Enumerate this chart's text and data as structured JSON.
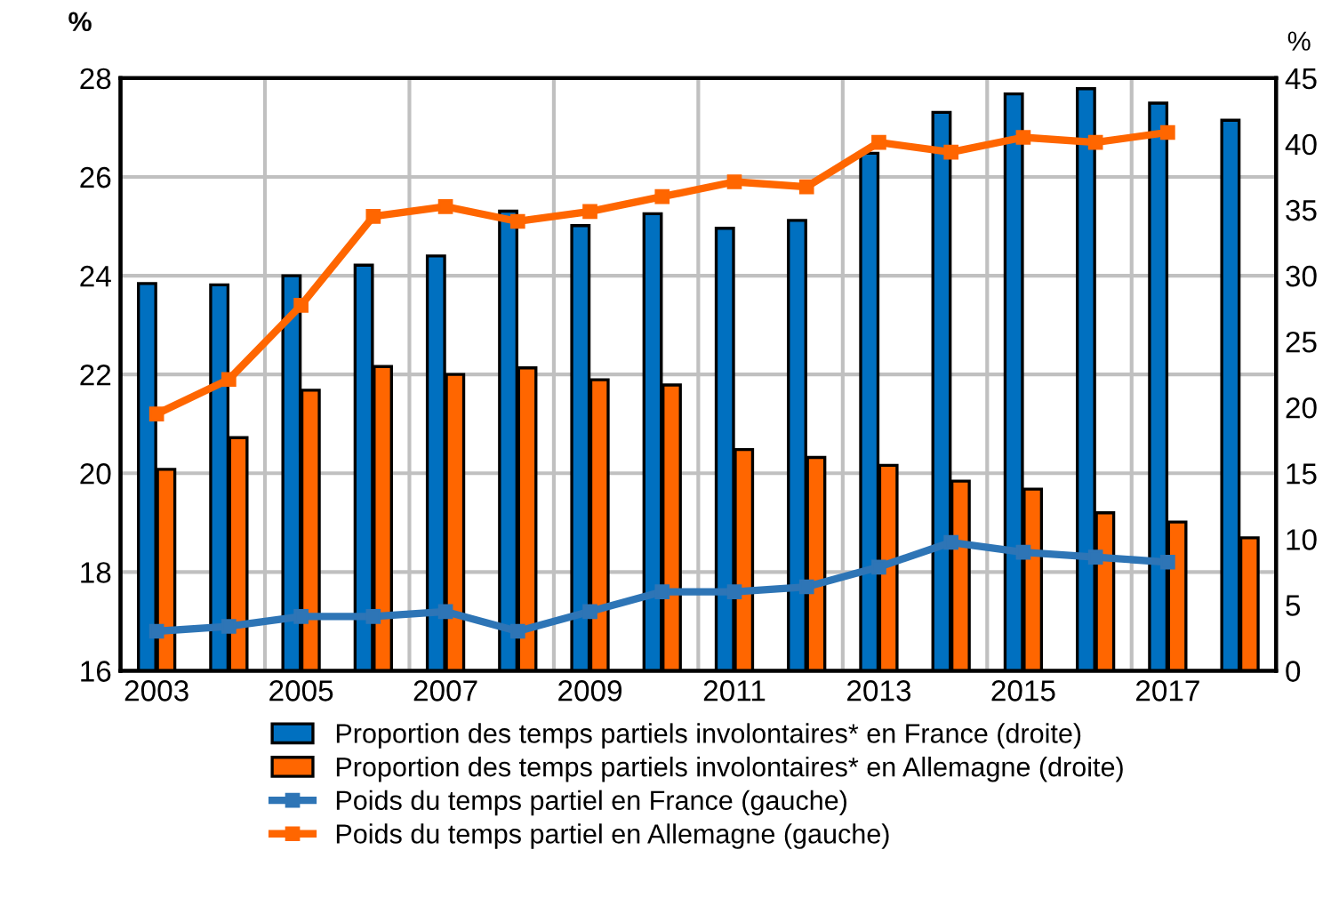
{
  "chart_data": {
    "type": "bar",
    "ylabel": "%",
    "y2label": "%",
    "categories": [
      "2003",
      null,
      "2005",
      null,
      "2007",
      null,
      "2009",
      null,
      "2011",
      null,
      "2013",
      null,
      "2015",
      null,
      "2017",
      null
    ],
    "series": [
      {
        "name": "Proportion des temps partiels involontaires* en France (droite)",
        "axis": "y2",
        "color": "#0070c0",
        "values": [
          29.4,
          29.3,
          30.0,
          30.8,
          31.5,
          34.9,
          33.8,
          34.7,
          33.6,
          34.2,
          39.3,
          42.4,
          43.8,
          44.2,
          43.1,
          41.8
        ]
      },
      {
        "name": "Proportion des temps partiels involontaires* en Allemagne (droite)",
        "axis": "y2",
        "color": "#ff6600",
        "values": [
          15.3,
          17.7,
          21.3,
          23.1,
          22.5,
          23.0,
          22.1,
          21.7,
          16.8,
          16.2,
          15.6,
          14.4,
          13.8,
          12.0,
          11.3,
          10.1
        ]
      },
      {
        "name": "Poids du temps partiel en France (gauche)",
        "type": "line",
        "axis": "y",
        "color": "#2e75b6",
        "marker": "square",
        "values": [
          16.8,
          16.9,
          17.1,
          17.1,
          17.2,
          16.8,
          17.2,
          17.6,
          17.6,
          17.7,
          18.1,
          18.6,
          18.4,
          18.3,
          18.2,
          null
        ]
      },
      {
        "name": "Poids du temps partiel en Allemagne (gauche)",
        "type": "line",
        "axis": "y",
        "color": "#ff6600",
        "marker": "square",
        "values": [
          21.2,
          21.9,
          23.4,
          25.2,
          25.4,
          25.1,
          25.3,
          25.6,
          25.9,
          25.8,
          26.7,
          26.5,
          26.8,
          26.7,
          26.9,
          null
        ]
      }
    ],
    "ylim": [
      16,
      28
    ],
    "yticks": [
      16,
      18,
      20,
      22,
      24,
      26,
      28
    ],
    "y2lim": [
      0,
      45
    ],
    "y2ticks": [
      0,
      5,
      10,
      15,
      20,
      25,
      30,
      35,
      40,
      45
    ],
    "grid": true,
    "legend": "bottom"
  }
}
